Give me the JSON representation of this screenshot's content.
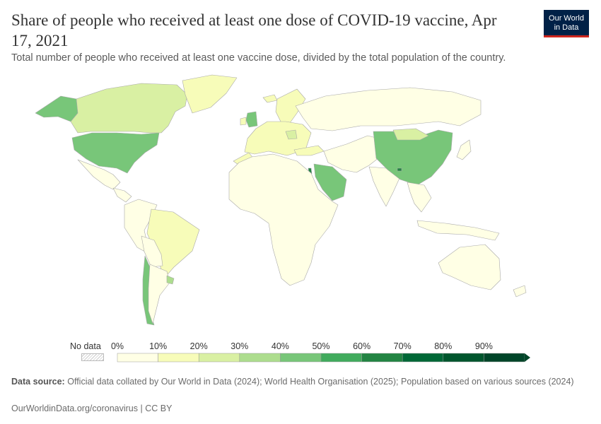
{
  "header": {
    "title": "Share of people who received at least one dose of COVID-19 vaccine, Apr 17, 2021",
    "subtitle": "Total number of people who received at least one vaccine dose, divided by the total population of the country.",
    "logo_line1": "Our World",
    "logo_line2": "in Data"
  },
  "legend": {
    "no_data_label": "No data",
    "ticks": [
      "0%",
      "10%",
      "20%",
      "30%",
      "40%",
      "50%",
      "60%",
      "70%",
      "80%",
      "90%"
    ],
    "bins": [
      {
        "from": 0,
        "to": 10,
        "color": "#ffffe5"
      },
      {
        "from": 10,
        "to": 20,
        "color": "#f7fcb9"
      },
      {
        "from": 20,
        "to": 30,
        "color": "#d9f0a3"
      },
      {
        "from": 30,
        "to": 40,
        "color": "#addd8e"
      },
      {
        "from": 40,
        "to": 50,
        "color": "#78c679"
      },
      {
        "from": 50,
        "to": 60,
        "color": "#41ab5d"
      },
      {
        "from": 60,
        "to": 70,
        "color": "#238443"
      },
      {
        "from": 70,
        "to": 80,
        "color": "#006837"
      },
      {
        "from": 80,
        "to": 90,
        "color": "#00562d"
      },
      {
        "from": 90,
        "to": 100,
        "color": "#004529"
      }
    ]
  },
  "chart_data": {
    "type": "choropleth",
    "unit": "%",
    "title": "Share of people who received at least one dose of COVID-19 vaccine, Apr 17, 2021",
    "regions": [
      {
        "name": "Alaska (United States)",
        "bin": "40-50%"
      },
      {
        "name": "Canada",
        "bin": "20-30%"
      },
      {
        "name": "Greenland",
        "bin": "10-20%"
      },
      {
        "name": "United States",
        "bin": "40-50%"
      },
      {
        "name": "Mexico",
        "bin": "0-10%"
      },
      {
        "name": "Central America",
        "bin": "0-10%"
      },
      {
        "name": "Colombia / Venezuela / Peru",
        "bin": "0-10%"
      },
      {
        "name": "Brazil",
        "bin": "10-20%"
      },
      {
        "name": "Bolivia / Paraguay",
        "bin": "0-10%"
      },
      {
        "name": "Chile",
        "bin": "40-50%"
      },
      {
        "name": "Argentina",
        "bin": "0-10%"
      },
      {
        "name": "Uruguay",
        "bin": "30-40%"
      },
      {
        "name": "Iceland",
        "bin": "10-20%"
      },
      {
        "name": "United Kingdom",
        "bin": "40-50%"
      },
      {
        "name": "Ireland",
        "bin": "10-20%"
      },
      {
        "name": "Scandinavia",
        "bin": "10-20%"
      },
      {
        "name": "Western & Central Europe",
        "bin": "10-20%"
      },
      {
        "name": "Hungary / Serbia",
        "bin": "20-30%"
      },
      {
        "name": "Russia",
        "bin": "0-10%"
      },
      {
        "name": "Turkey",
        "bin": "10-20%"
      },
      {
        "name": "Israel",
        "bin": "60-70%"
      },
      {
        "name": "Saudi Arabia / Gulf",
        "bin": "40-50%"
      },
      {
        "name": "Morocco",
        "bin": "10-20%"
      },
      {
        "name": "Africa",
        "bin": "0-10%"
      },
      {
        "name": "Middle East / Central Asia",
        "bin": "0-10%"
      },
      {
        "name": "India",
        "bin": "0-10%"
      },
      {
        "name": "China",
        "bin": "40-50%"
      },
      {
        "name": "Mongolia",
        "bin": "20-30%"
      },
      {
        "name": "Bhutan",
        "bin": "60-70%"
      },
      {
        "name": "Southeast Asia",
        "bin": "0-10%"
      },
      {
        "name": "Japan",
        "bin": "0-10%"
      },
      {
        "name": "Indonesia / Papua",
        "bin": "0-10%"
      },
      {
        "name": "Australia",
        "bin": "0-10%"
      },
      {
        "name": "New Zealand",
        "bin": "0-10%"
      }
    ]
  },
  "footer": {
    "source_label": "Data source:",
    "source_text": "Official data collated by Our World in Data (2024); World Health Organisation (2025); Population based on various sources (2024)",
    "url_text": "OurWorldinData.org/coronavirus | CC BY"
  }
}
